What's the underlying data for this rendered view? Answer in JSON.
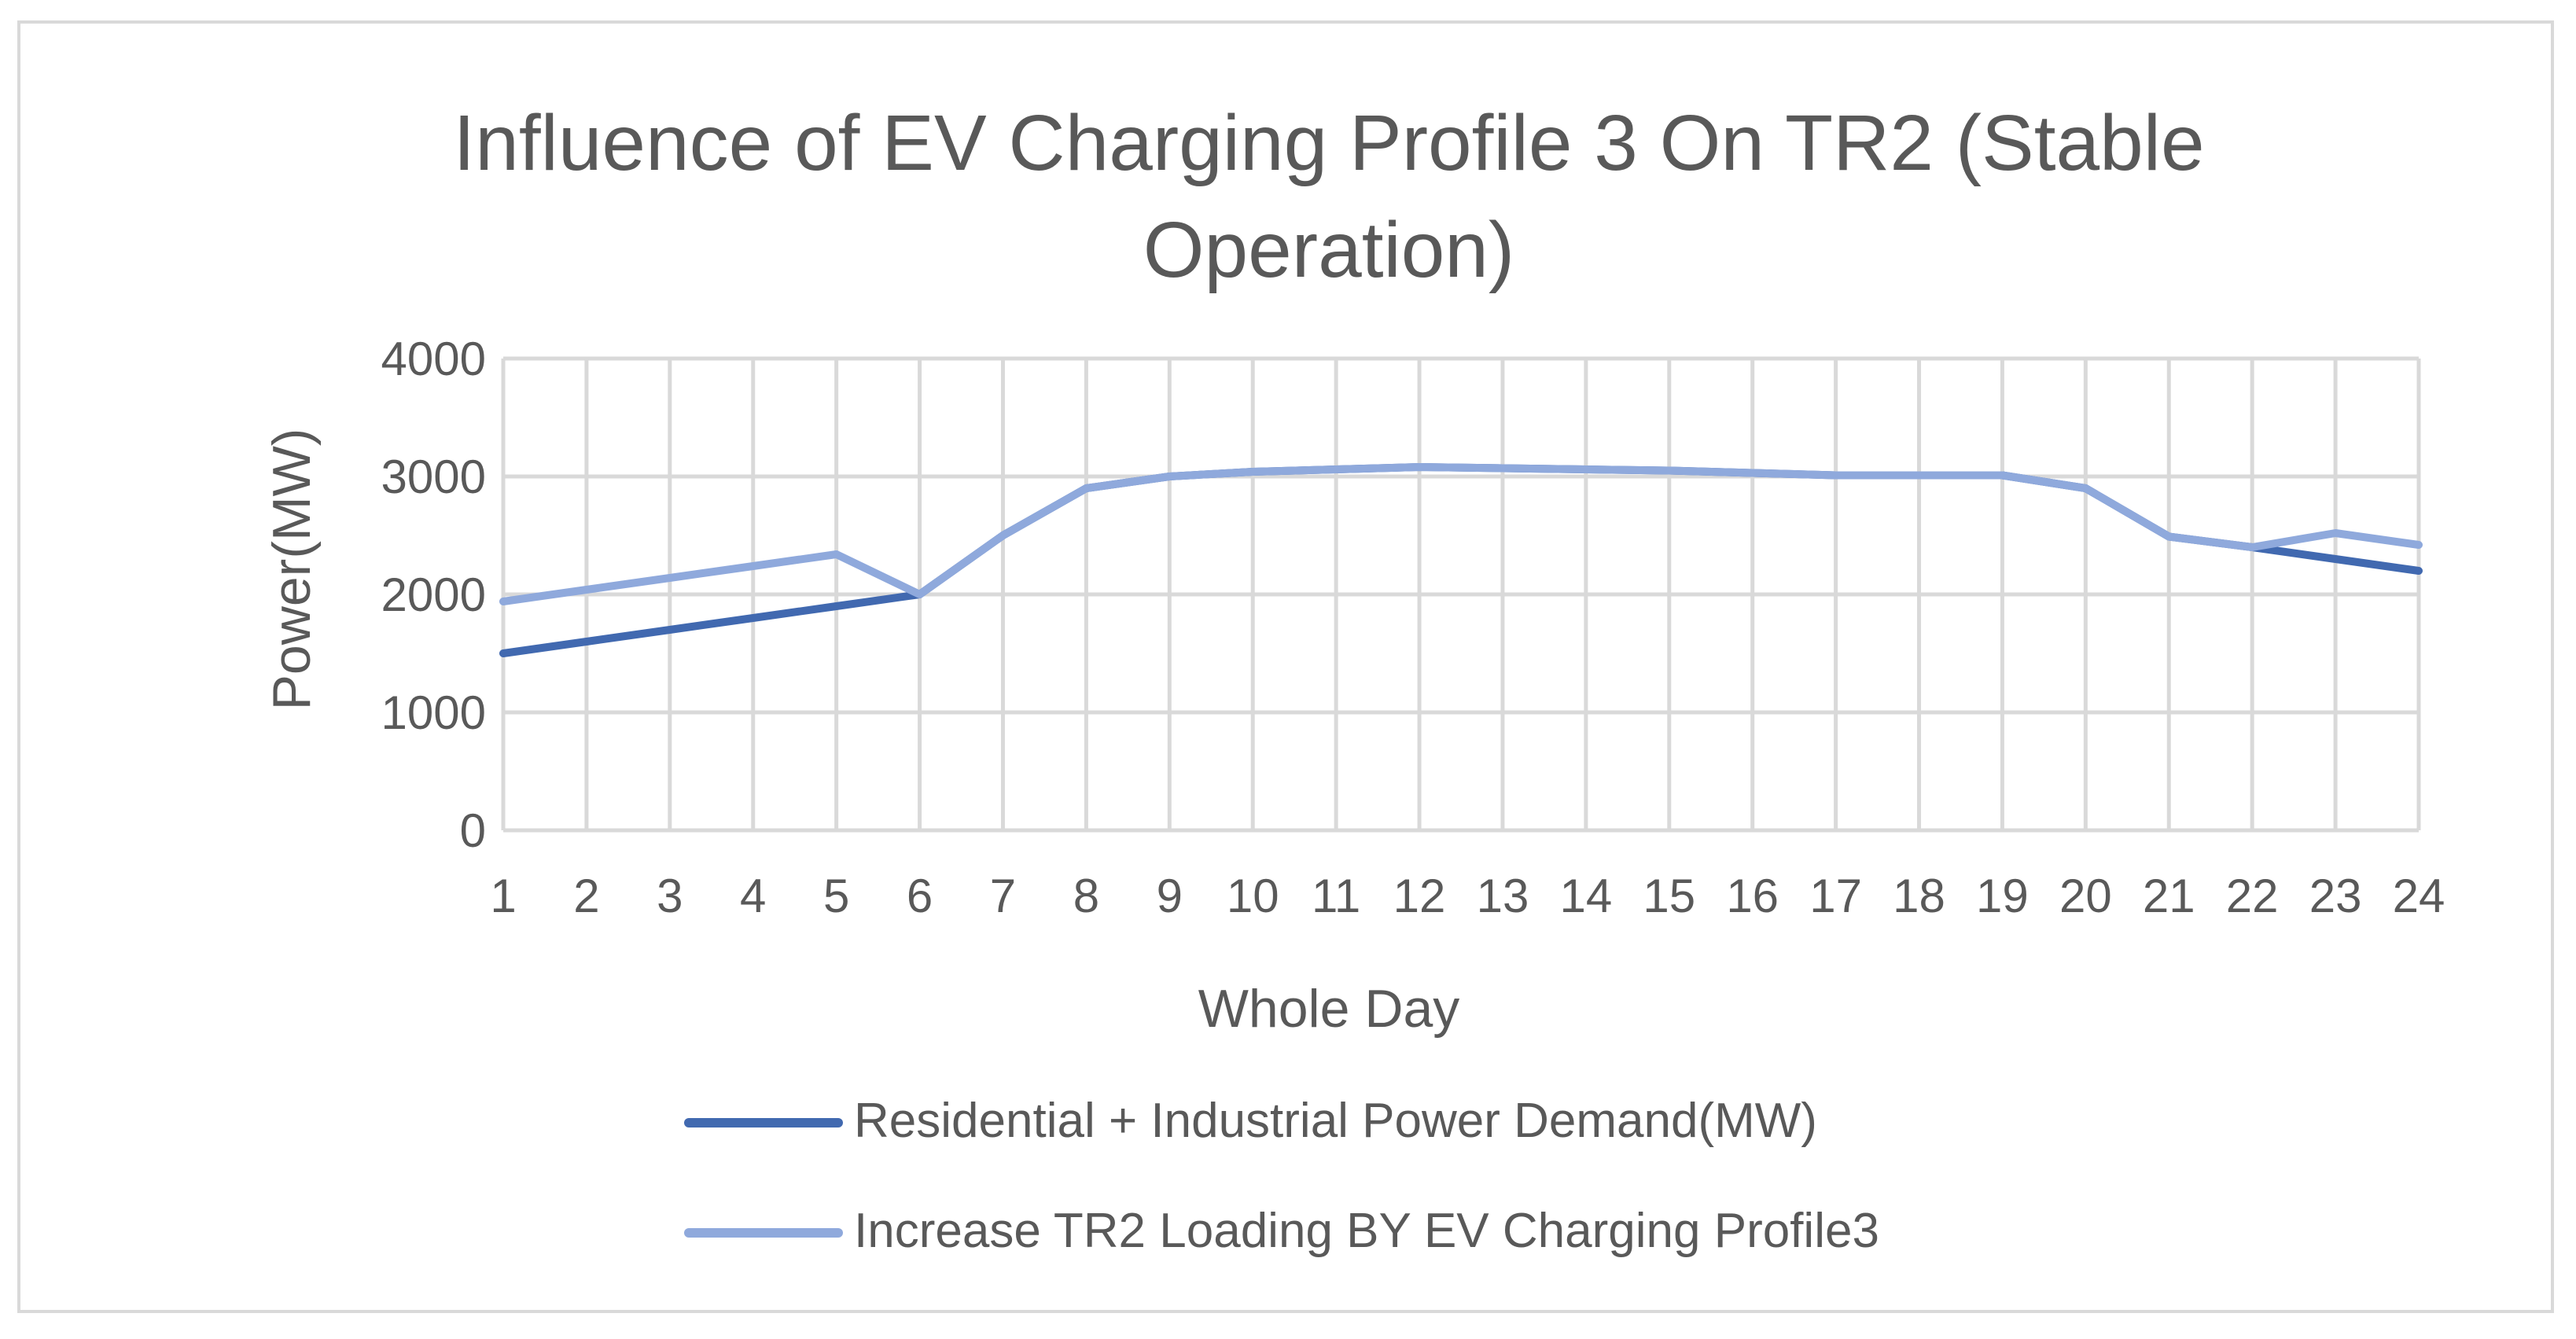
{
  "chart_data": {
    "type": "line",
    "title_lines": [
      "Influence of EV Charging Profile 3 On TR2 (Stable",
      "Operation)"
    ],
    "xlabel": "Whole Day",
    "ylabel": "Power(MW)",
    "categories": [
      "1",
      "2",
      "3",
      "4",
      "5",
      "6",
      "7",
      "8",
      "9",
      "10",
      "11",
      "12",
      "13",
      "14",
      "15",
      "16",
      "17",
      "18",
      "19",
      "20",
      "21",
      "22",
      "23",
      "24"
    ],
    "yticks": [
      "0",
      "1000",
      "2000",
      "3000",
      "4000"
    ],
    "ylim": [
      0,
      4000
    ],
    "grid": true,
    "legend_position": "bottom",
    "series": [
      {
        "name": "Residential + Industrial Power Demand(MW)",
        "color": "#4169b0",
        "values": [
          1500,
          1600,
          1700,
          1800,
          1900,
          2000,
          2500,
          2900,
          3000,
          3040,
          3060,
          3080,
          3070,
          3060,
          3050,
          3030,
          3010,
          3010,
          3010,
          2900,
          2490,
          2400,
          2300,
          2200
        ]
      },
      {
        "name": "Increase TR2 Loading BY EV Charging Profile3",
        "color": "#8fa9dc",
        "values": [
          1940,
          2040,
          2140,
          2240,
          2340,
          2000,
          2500,
          2900,
          3000,
          3040,
          3060,
          3080,
          3070,
          3060,
          3050,
          3030,
          3010,
          3010,
          3010,
          2900,
          2490,
          2400,
          2520,
          2420
        ]
      }
    ]
  }
}
